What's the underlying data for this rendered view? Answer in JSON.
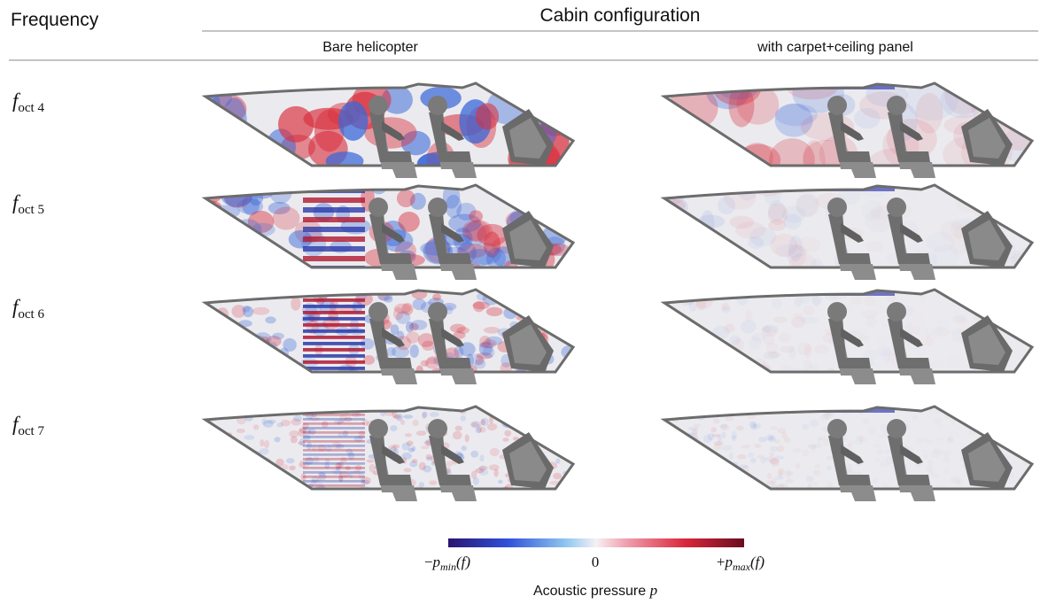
{
  "header": {
    "frequency": "Frequency",
    "configuration": "Cabin configuration",
    "columns": [
      "Bare helicopter",
      "with carpet+ceiling panel"
    ]
  },
  "rows": [
    {
      "symbol": "f",
      "subscript": "oct 4"
    },
    {
      "symbol": "f",
      "subscript": "oct 5"
    },
    {
      "symbol": "f",
      "subscript": "oct 6"
    },
    {
      "symbol": "f",
      "subscript": "oct 7"
    }
  ],
  "colorbar": {
    "ticks": [
      {
        "sign": "−",
        "symbol": "p",
        "subscript": "min",
        "argument": "(f)"
      },
      {
        "label": "0"
      },
      {
        "sign": "+",
        "symbol": "p",
        "subscript": "max",
        "argument": "(f)"
      }
    ],
    "label": "Acoustic pressure",
    "label_symbol": "p"
  }
}
